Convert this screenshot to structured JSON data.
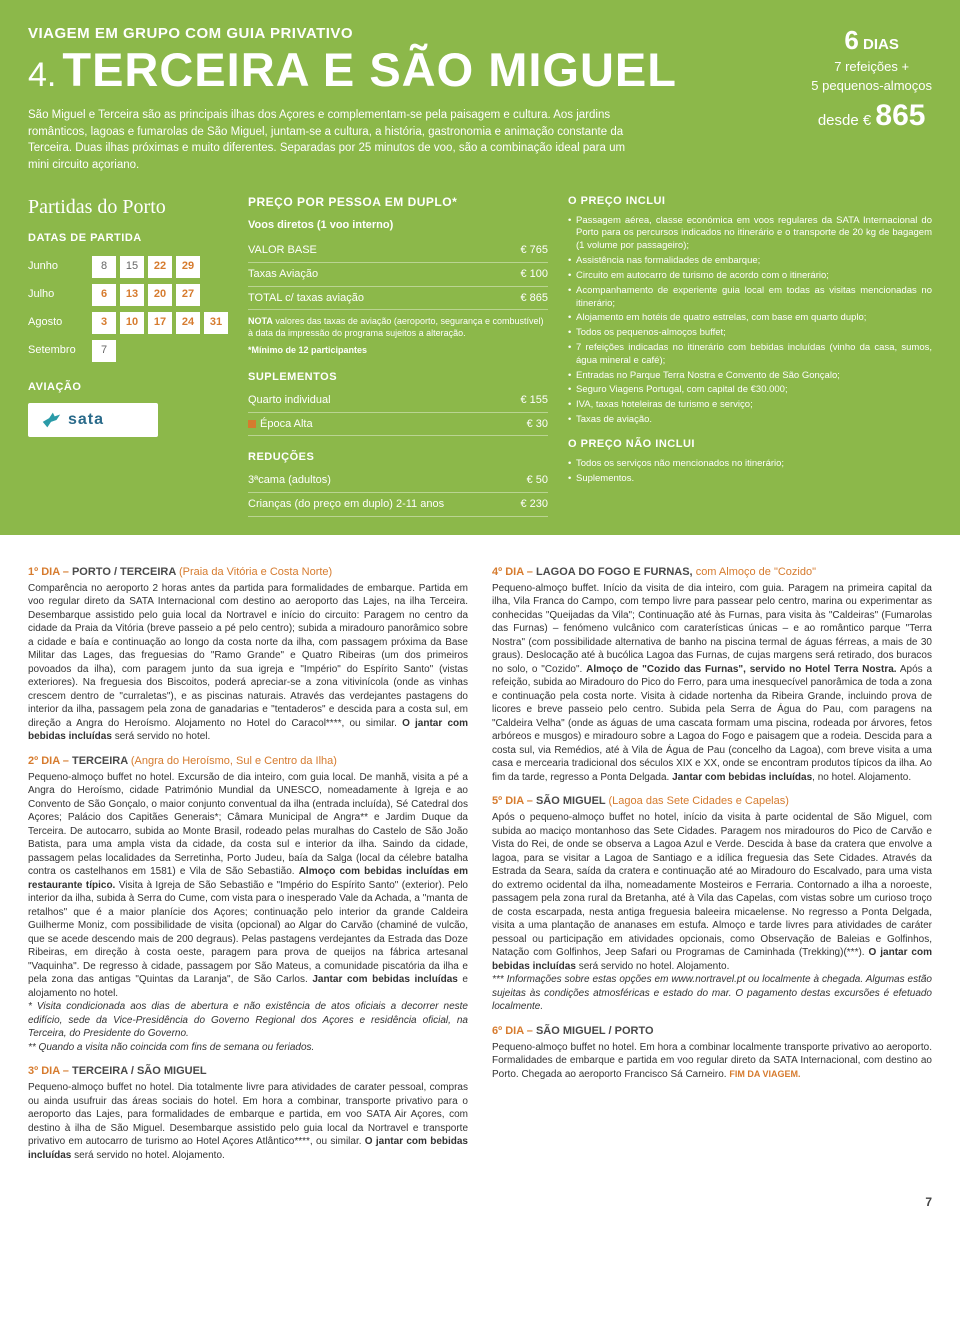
{
  "hero": {
    "supertitle": "VIAGEM EM GRUPO COM GUIA PRIVATIVO",
    "num": "4.",
    "title": "TERCEIRA E SÃO MIGUEL",
    "intro": "São Miguel e Terceira são as principais ilhas dos Açores e complementam-se pela paisagem e cultura. Aos jardins românticos, lagoas e fumarolas de São Miguel, juntam-se a cultura, a história, gastronomia e animação constante da Terceira. Duas ilhas próximas e muito diferentes. Separadas por 25 minutos de voo, são a combinação ideal para um mini circuito açoriano.",
    "badge": {
      "days_big": "6",
      "days_label": "DIAS",
      "line1": "7 refeições +",
      "line2": "5 pequenos-almoços",
      "from": "desde €",
      "price": "865"
    }
  },
  "departures": {
    "title": "Partidas do Porto",
    "label": "DATAS DE PARTIDA",
    "rows": [
      {
        "m": "Junho",
        "d": [
          "8",
          "15",
          "22",
          "29",
          ""
        ],
        "alt": [
          0,
          0,
          1,
          1,
          0
        ]
      },
      {
        "m": "Julho",
        "d": [
          "6",
          "13",
          "20",
          "27",
          ""
        ],
        "alt": [
          1,
          1,
          1,
          1,
          0
        ]
      },
      {
        "m": "Agosto",
        "d": [
          "3",
          "10",
          "17",
          "24",
          "31"
        ],
        "alt": [
          1,
          1,
          1,
          1,
          1
        ]
      },
      {
        "m": "Setembro",
        "d": [
          "7",
          "",
          "",
          "",
          ""
        ],
        "alt": [
          0,
          0,
          0,
          0,
          0
        ]
      }
    ],
    "airline_label": "AVIAÇÃO",
    "airline_name": "sata"
  },
  "pricing": {
    "head": "PREÇO POR PESSOA EM DUPLO*",
    "sub": "Voos diretos (1 voo interno)",
    "rows": [
      {
        "l": "VALOR BASE",
        "v": "€ 765"
      },
      {
        "l": "Taxas Aviação",
        "v": "€ 100"
      },
      {
        "l": "TOTAL c/ taxas aviação",
        "v": "€ 865"
      }
    ],
    "note": "NOTA valores das taxas de aviação (aeroporto, segurança e combustível) à data da impressão do programa sujeitos a alteração.",
    "min": "*Mínimo de 12 participantes",
    "supp_head": "SUPLEMENTOS",
    "supp": [
      {
        "l": "Quarto individual",
        "v": "€ 155",
        "sq": false
      },
      {
        "l": "Época Alta",
        "v": "€ 30",
        "sq": true
      }
    ],
    "red_head": "REDUÇÕES",
    "red": [
      {
        "l": "3ªcama (adultos)",
        "v": "€ 50"
      },
      {
        "l": "Crianças (do preço em duplo) 2-11 anos",
        "v": "€ 230"
      }
    ]
  },
  "includes": {
    "head": "O PREÇO INCLUI",
    "items": [
      "Passagem aérea, classe económica em voos regulares da SATA Internacional do Porto para os percursos indicados no itinerário e o transporte de 20 kg de bagagem (1 volume por passageiro);",
      "Assistência nas formalidades de embarque;",
      "Circuito em autocarro de turismo de acordo com o itinerário;",
      "Acompanhamento de experiente guia local em todas as visitas mencionadas no itinerário;",
      "Alojamento em hotéis de quatro estrelas, com base em quarto duplo;",
      "Todos os pequenos-almoços buffet;",
      "7 refeições indicadas no itinerário com bebidas incluídas (vinho da casa, sumos, água mineral e café);",
      "Entradas no Parque Terra Nostra e Convento de São Gonçalo;",
      "Seguro Viagens Portugal, com capital de €30.000;",
      "IVA, taxas hoteleiras de turismo e serviço;",
      "Taxas de aviação."
    ],
    "ex_head": "O PREÇO NÃO INCLUI",
    "ex_items": [
      "Todos os serviços não mencionados no itinerário;",
      "Suplementos."
    ]
  },
  "days": [
    {
      "t1": "1º DIA –",
      "t2": "PORTO / TERCEIRA",
      "t3": "(Praia da Vitória e Costa Norte)",
      "body": "Comparência no aeroporto 2 horas antes da partida para formalidades de embarque. Partida em voo regular direto da SATA Internacional com destino ao aeroporto das Lajes, na ilha Terceira. Desembarque assistido pelo guia local da Nortravel e início do circuito: Paragem no centro da cidade da Praia da Vitória (breve passeio a pé pelo centro); subida a miradouro panorâmico sobre a cidade e baía e continuação ao longo da costa norte da ilha, com passagem próxima da Base Militar das Lages, das freguesias do \"Ramo Grande\" e Quatro Ribeiras (um dos primeiros povoados da ilha), com paragem junto da sua igreja e \"Império\" do Espírito Santo\" (vistas exteriores). Na freguesia dos Biscoitos, poderá apreciar-se a zona vitivinícola (onde as vinhas crescem dentro de \"curraletas\"), e as piscinas naturais. Através das verdejantes pastagens do interior da ilha, passagem pela zona de ganadarias e \"tentaderos\" e descida para a costa sul, em direção a Angra do Heroísmo. Alojamento no Hotel do Caracol****, ou similar. <strong>O jantar com bebidas incluídas</strong> será servido no hotel."
    },
    {
      "t1": "2º DIA –",
      "t2": "TERCEIRA",
      "t3": "(Angra do Heroísmo, Sul e Centro da Ilha)",
      "body": "Pequeno-almoço buffet no hotel. Excursão de dia inteiro, com guia local. De manhã, visita a pé a Angra do Heroísmo, cidade Património Mundial da UNESCO, nomeadamente à Igreja e ao Convento de São Gonçalo, o maior conjunto conventual da ilha (entrada incluída), Sé Catedral dos Açores; Palácio dos Capitães Generais*; Câmara Municipal de Angra** e Jardim Duque da Terceira. De autocarro, subida ao Monte Brasil, rodeado pelas muralhas do Castelo de São João Batista, para uma ampla vista da cidade, da costa sul e interior da ilha. Saindo da cidade, passagem pelas localidades da Serretinha, Porto Judeu, baía da Salga (local da célebre batalha contra os castelhanos em 1581) e Vila de São Sebastião. <strong>Almoço com bebidas incluídas em restaurante típico.</strong> Visita à Igreja de São Sebastião e \"Império do Espírito Santo\" (exterior). Pelo interior da ilha, subida à Serra do Cume, com vista para o inesperado Vale da Achada, a \"manta de retalhos\" que é a maior planície dos Açores; continuação pelo interior da grande Caldeira Guilherme Moniz, com possibilidade de visita (opcional) ao Algar do Carvão (chaminé de vulcão, que se acede descendo mais de 200 degraus). Pelas pastagens verdejantes da Estrada das Doze Ribeiras, em direção à costa oeste, paragem para prova de queijos na fábrica artesanal \"Vaquinha\". De regresso à cidade, passagem por São Mateus, a comunidade piscatória da ilha e pela zona das antigas \"Quintas da Laranja\", de São Carlos. <strong>Jantar com bebidas incluídas</strong> e alojamento no hotel.<br><em>* Visita condicionada aos dias de abertura e não existência de atos oficiais a decorrer neste edifício, sede da Vice-Presidência do Governo Regional dos Açores e residência oficial, na Terceira, do Presidente do Governo.<br>** Quando a visita não coincida com fins de semana ou feriados.</em>"
    },
    {
      "t1": "3º DIA –",
      "t2": "TERCEIRA / SÃO MIGUEL",
      "t3": "",
      "body": "Pequeno-almoço buffet no hotel. Dia totalmente livre para atividades de carater pessoal, compras ou ainda usufruir das áreas sociais do hotel. Em hora a combinar, transporte privativo para o aeroporto das Lajes, para formalidades de embarque e partida, em voo SATA Air Açores, com destino à ilha de São Miguel. Desembarque assistido pelo guia local da Nortravel e transporte privativo em autocarro de turismo ao Hotel Açores Atlântico****, ou similar. <strong>O jantar com bebidas incluídas</strong> será servido no hotel. Alojamento."
    },
    {
      "t1": "4º DIA –",
      "t2": "LAGOA DO FOGO E FURNAS,",
      "t3": "com Almoço de \"Cozido\"",
      "body": "Pequeno-almoço buffet. Início da visita de dia inteiro, com guia. Paragem na primeira capital da ilha, Vila Franca do Campo, com tempo livre para passear pelo centro, marina ou experimentar as conhecidas \"Queijadas da Vila\"; Continuação até às Furnas, para visita às \"Caldeiras\" (Fumarolas das Furnas) – fenómeno vulcânico com caraterísticas únicas – e ao romântico parque \"Terra Nostra\" (com possibilidade alternativa de banho na piscina termal de águas férreas, a mais de 30 graus). Deslocação até à bucólica Lagoa das Furnas, de cujas margens será retirado, dos buracos no solo, o \"Cozido\". <strong>Almoço de \"Cozido das Furnas\", servido no Hotel Terra Nostra.</strong> Após a refeição, subida ao Miradouro do Pico do Ferro, para uma inesquecível panorâmica de toda a zona e continuação pela costa norte. Visita à cidade nortenha da Ribeira Grande, incluindo prova de licores e breve passeio pelo centro. Subida pela Serra de Água do Pau, com paragens na \"Caldeira Velha\" (onde as águas de uma cascata formam uma piscina, rodeada por árvores, fetos arbóreos e musgos) e miradouro sobre a Lagoa do Fogo e paisagem que a rodeia. Descida para a costa sul, via Remédios, até à Vila de Água de Pau (concelho da Lagoa), com breve visita a uma casa e mercearia tradicional dos séculos XIX e XX, onde se encontram produtos típicos da ilha. Ao fim da tarde, regresso a Ponta Delgada. <strong>Jantar com bebidas incluídas</strong>, no hotel. Alojamento."
    },
    {
      "t1": "5º DIA –",
      "t2": "SÃO MIGUEL",
      "t3": "(Lagoa das Sete Cidades e Capelas)",
      "body": "Após o pequeno-almoço buffet no hotel, início da visita à parte ocidental de São Miguel, com subida ao maciço montanhoso das Sete Cidades. Paragem nos miradouros do Pico de Carvão e Vista do Rei, de onde se observa a Lagoa Azul e Verde. Descida à base da cratera que envolve a lagoa, para se visitar a Lagoa de Santiago e a idílica freguesia das Sete Cidades. Através da Estrada da Seara, saída da cratera e continuação até ao Miradouro do Escalvado, para uma vista do extremo ocidental da ilha, nomeadamente Mosteiros e Ferraria. Contornado a ilha a noroeste, passagem pela zona rural da Bretanha, até à Vila das Capelas, com vistas sobre um curioso troço de costa escarpada, nesta antiga freguesia baleeira micaelense. No regresso a Ponta Delgada, visita a uma plantação de ananases em estufa. Almoço e tarde livres para atividades de caráter pessoal ou participação em atividades opcionais, como Observação de Baleias e Golfinhos, Natação com Golfinhos, Jeep Safari ou Programas de Caminhada (Trekking)(***). <strong>O jantar com bebidas incluídas</strong> será servido no hotel. Alojamento.<br><em>*** Informações sobre estas opções em www.nortravel.pt ou localmente à chegada. Algumas estão sujeitas às condições atmosféricas e estado do mar. O pagamento destas excursões é efetuado localmente.</em>"
    },
    {
      "t1": "6º DIA –",
      "t2": "SÃO MIGUEL / PORTO",
      "t3": "",
      "body": "Pequeno-almoço buffet no hotel. Em hora a combinar localmente transporte privativo ao aeroporto. Formalidades de embarque e partida em voo regular direto da SATA Internacional, com destino ao Porto. Chegada ao aeroporto Francisco Sá Carneiro. <span class=\"fim\">FIM DA VIAGEM.</span>"
    }
  ],
  "pagenum": "7"
}
